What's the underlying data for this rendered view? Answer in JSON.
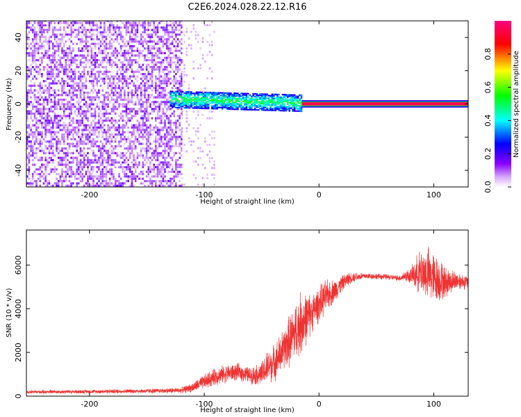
{
  "title": "C2E6.2024.028.22.12.R16",
  "chart_data": [
    {
      "type": "heatmap",
      "xlabel": "Height of straight line (km)",
      "ylabel": "Frequency (Hz)",
      "xlim": [
        -255,
        130
      ],
      "ylim": [
        -50,
        50
      ],
      "x_ticks": [
        -200,
        -100,
        0,
        100
      ],
      "x_tick_labels": [
        "-200",
        "-100",
        "0",
        "100"
      ],
      "y_ticks": [
        -40,
        -20,
        0,
        20,
        40
      ],
      "y_tick_labels": [
        "-40",
        "-20",
        "0",
        "20",
        "40"
      ],
      "grid": false,
      "colorbar": {
        "label": "Normalized spectral amplitude",
        "range": [
          0,
          1
        ],
        "ticks": [
          0.0,
          0.2,
          0.4,
          0.6,
          0.8
        ],
        "tick_labels": [
          "0.0",
          "0.2",
          "0.4",
          "0.6",
          "0.8"
        ],
        "colormap": [
          "#ffffff",
          "#8800ff",
          "#0000ff",
          "#00ffff",
          "#00ff00",
          "#ffff00",
          "#ff0000",
          "#ff0080"
        ]
      },
      "regions": [
        {
          "x_range": [
            -255,
            -120
          ],
          "freq_range": [
            -50,
            50
          ],
          "amplitude": 0.1,
          "description": "broadband noise"
        },
        {
          "x_range": [
            -130,
            -15
          ],
          "freq_range": [
            -5,
            5
          ],
          "amplitude": 0.3
        },
        {
          "x_range": [
            -15,
            130
          ],
          "freq_range": [
            -1,
            1
          ],
          "amplitude": 0.95
        }
      ]
    },
    {
      "type": "line",
      "xlabel": "Height of straight line (km)",
      "ylabel": "SNR (10 * v/v)",
      "xlim": [
        -255,
        130
      ],
      "ylim": [
        0,
        7600
      ],
      "x_ticks": [
        -200,
        -100,
        0,
        100
      ],
      "x_tick_labels": [
        "-200",
        "-100",
        "0",
        "100"
      ],
      "y_ticks": [
        0,
        2000,
        4000,
        6000
      ],
      "y_tick_labels": [
        "0",
        "2000",
        "4000",
        "6000"
      ],
      "grid": false,
      "series": [
        {
          "color": "#ee3333",
          "x": [
            -255,
            -240,
            -220,
            -200,
            -180,
            -160,
            -140,
            -120,
            -110,
            -100,
            -90,
            -80,
            -70,
            -60,
            -50,
            -45,
            -40,
            -35,
            -30,
            -25,
            -20,
            -15,
            -10,
            -5,
            0,
            5,
            10,
            15,
            20,
            25,
            30,
            40,
            50,
            60,
            70,
            75,
            80,
            85,
            90,
            95,
            100,
            105,
            110,
            115,
            120,
            125,
            130
          ],
          "y": [
            180,
            200,
            200,
            210,
            220,
            230,
            240,
            270,
            400,
            650,
            900,
            1050,
            1100,
            950,
            1000,
            1300,
            1500,
            1800,
            2200,
            2600,
            3000,
            3400,
            3600,
            3900,
            4200,
            4500,
            4700,
            4900,
            5150,
            5350,
            5450,
            5500,
            5480,
            5450,
            5400,
            5500,
            5500,
            5600,
            5700,
            5600,
            5400,
            5300,
            5200,
            5250,
            5300,
            5250,
            5200
          ],
          "noise": [
            60,
            70,
            70,
            70,
            80,
            80,
            90,
            110,
            180,
            280,
            330,
            330,
            320,
            300,
            450,
            650,
            650,
            750,
            800,
            1000,
            1100,
            1200,
            900,
            700,
            650,
            650,
            500,
            400,
            300,
            250,
            180,
            120,
            110,
            110,
            110,
            200,
            300,
            650,
            900,
            1000,
            950,
            800,
            600,
            450,
            350,
            300,
            250
          ]
        }
      ]
    }
  ]
}
